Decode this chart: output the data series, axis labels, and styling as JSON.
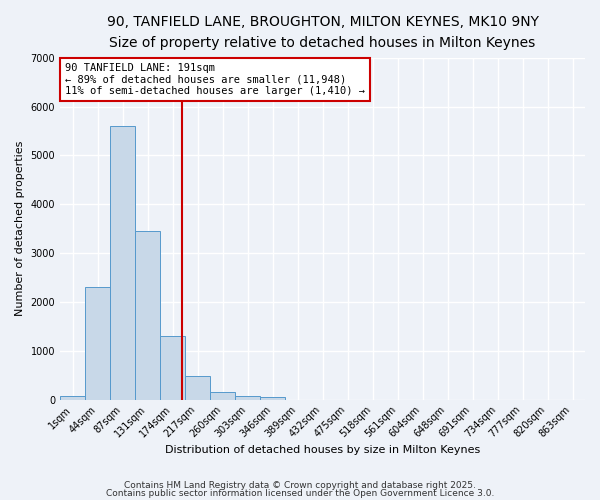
{
  "title1": "90, TANFIELD LANE, BROUGHTON, MILTON KEYNES, MK10 9NY",
  "title2": "Size of property relative to detached houses in Milton Keynes",
  "xlabel": "Distribution of detached houses by size in Milton Keynes",
  "ylabel": "Number of detached properties",
  "bar_labels": [
    "1sqm",
    "44sqm",
    "87sqm",
    "131sqm",
    "174sqm",
    "217sqm",
    "260sqm",
    "303sqm",
    "346sqm",
    "389sqm",
    "432sqm",
    "475sqm",
    "518sqm",
    "561sqm",
    "604sqm",
    "648sqm",
    "691sqm",
    "734sqm",
    "777sqm",
    "820sqm",
    "863sqm"
  ],
  "bar_heights": [
    75,
    2300,
    5600,
    3450,
    1300,
    475,
    160,
    75,
    50,
    0,
    0,
    0,
    0,
    0,
    0,
    0,
    0,
    0,
    0,
    0,
    0
  ],
  "bar_color": "#c8d8e8",
  "bar_edge_color": "#5599cc",
  "vline_color": "#cc0000",
  "ylim": [
    0,
    7000
  ],
  "annotation_text": "90 TANFIELD LANE: 191sqm\n← 89% of detached houses are smaller (11,948)\n11% of semi-detached houses are larger (1,410) →",
  "annotation_box_color": "#ffffff",
  "annotation_box_edge_color": "#cc0000",
  "footer1": "Contains HM Land Registry data © Crown copyright and database right 2025.",
  "footer2": "Contains public sector information licensed under the Open Government Licence 3.0.",
  "background_color": "#eef2f8",
  "grid_color": "#ffffff",
  "title_fontsize": 10,
  "subtitle_fontsize": 9,
  "axis_fontsize": 8,
  "tick_fontsize": 7
}
